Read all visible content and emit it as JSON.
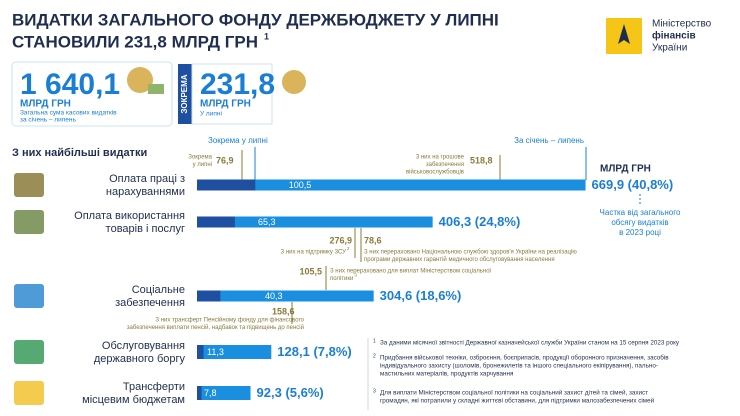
{
  "header": {
    "title": [
      "ВИДАТКИ ЗАГАЛЬНОГО ФОНДУ ДЕРЖБЮДЖЕТУ У ЛИПНІ",
      "СТАНОВИЛИ 231,8 МЛРД ГРН"
    ],
    "title_footnote": "1",
    "logo": [
      "Міністерство",
      "фінансів",
      "України"
    ]
  },
  "summary": {
    "total": {
      "value": "1 640,1",
      "unit": "МЛРД ГРН",
      "description": [
        "Загальна сума касових видатків",
        "за січень – липень"
      ]
    },
    "including_label": "ЗОКРЕМА",
    "july": {
      "value": "231,8",
      "unit": "МЛРД ГРН",
      "description": [
        "У липні"
      ]
    }
  },
  "breakdown": {
    "heading": "З них найбільші видатки",
    "july_label": "Зокрема у липні",
    "period_label": "За січень – липень",
    "unit": "МЛРД ГРН",
    "share_note": [
      "Частка від загального",
      "обсягу видатків",
      "в 2023 році"
    ],
    "rows": [
      {
        "label": [
          "Оплата праці з",
          "нарахуваннями"
        ],
        "july": {
          "value": 100.5,
          "label": "100,5"
        },
        "total": {
          "value": 669.9,
          "label": "669,9 (40,8%)"
        }
      },
      {
        "label": [
          "Оплата використання",
          "товарів і послуг"
        ],
        "july": {
          "value": 65.3,
          "label": "65,3"
        },
        "total": {
          "value": 406.3,
          "label": "406,3 (24,8%)"
        }
      },
      {
        "label": [
          "Соціальне",
          "забезпечення"
        ],
        "july": {
          "value": 40.3,
          "label": "40,3"
        },
        "total": {
          "value": 304.6,
          "label": "304,6 (18,6%)"
        }
      },
      {
        "label": [
          "Обслуговування",
          "державного боргу"
        ],
        "july": {
          "value": 11.3,
          "label": "11,3"
        },
        "total": {
          "value": 128.1,
          "label": "128,1 (7,8%)"
        }
      },
      {
        "label": [
          "Трансферти",
          "місцевим бюджетам"
        ],
        "july": {
          "value": 7.8,
          "label": "7,8"
        },
        "total": {
          "value": 92.3,
          "label": "92,3 (5,6%)"
        }
      }
    ],
    "annotations": [
      {
        "value": "76,9",
        "text": [
          "Зокрема",
          "у липні"
        ]
      },
      {
        "value": "518,8",
        "text": [
          "З них на грошове",
          "забезпечення",
          "військовослужбовців"
        ]
      },
      {
        "value": "276,9",
        "text": [
          "З них на підтримку ЗСУ"
        ],
        "note": "2"
      },
      {
        "value": "78,6",
        "text": [
          "З них перераховано Національною службою здоров'я України на реалізацію",
          "програми державних гарантій медичного обслуговування населення"
        ]
      },
      {
        "value": "105,5",
        "text": [
          "З них перераховано для виплат Міністерством соціальної",
          "політики"
        ],
        "note": "3"
      },
      {
        "value": "158,6",
        "text": [
          "З них трансферт Пенсійному фонду для фінансового",
          "забезпечення виплати пенсій, надбавок та підвищень до пенсій"
        ]
      }
    ]
  },
  "footnotes": [
    {
      "mark": "1",
      "text": [
        "За даними місячної звітності Державної казначейської служби України станом на 15 серпня 2023 року"
      ]
    },
    {
      "mark": "2",
      "text": [
        "Придбання військової техніки, озброєння, боєприпасів, продукції оборонного призначення, засобів",
        "індивідуального захисту (шоломів, бронежилетів та іншого спеціального екіпірування), пально-",
        "мастильних матеріалів, продуктів харчування"
      ]
    },
    {
      "mark": "3",
      "text": [
        "Для виплати Міністерством соціальної політики на соціальний захист дітей та сімей, захист",
        "громадян, які потрапили у складні життєві обставини, для підтримки малозабезпечених сімей"
      ]
    }
  ]
}
